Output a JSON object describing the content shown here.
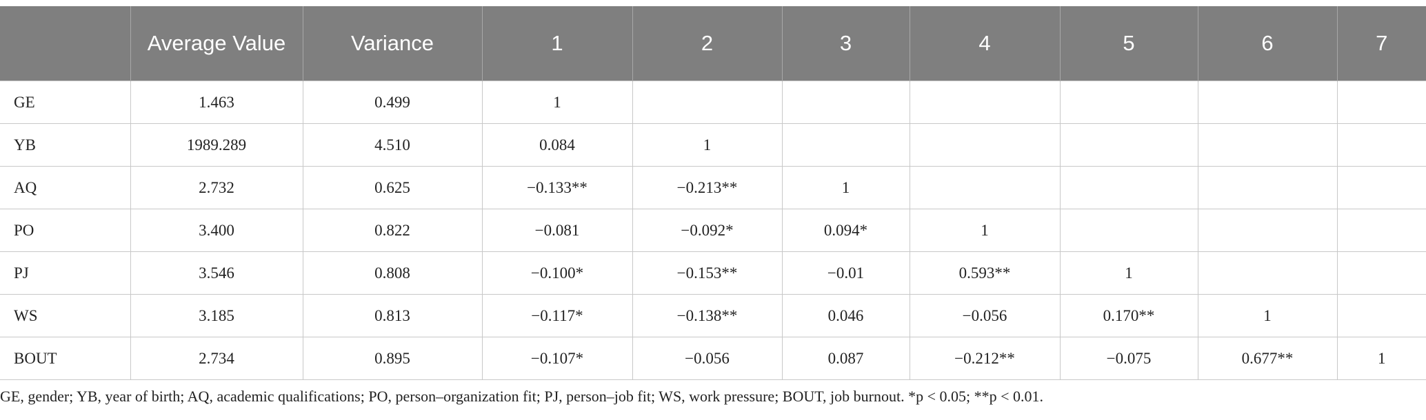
{
  "table": {
    "header": [
      "Average Value",
      "Variance",
      "1",
      "2",
      "3",
      "4",
      "5",
      "6",
      "7"
    ],
    "rows": [
      [
        "GE",
        "1.463",
        "0.499",
        "1"
      ],
      [
        "YB",
        "1989.289",
        "4.510",
        "0.084",
        "1"
      ],
      [
        "AQ",
        "2.732",
        "0.625",
        "−0.133**",
        "−0.213**",
        "1"
      ],
      [
        "PO",
        "3.400",
        "0.822",
        "−0.081",
        "−0.092*",
        "0.094*",
        "1"
      ],
      [
        "PJ",
        "3.546",
        "0.808",
        "−0.100*",
        "−0.153**",
        "−0.01",
        "0.593**",
        "1"
      ],
      [
        "WS",
        "3.185",
        "0.813",
        "−0.117*",
        "−0.138**",
        "0.046",
        "−0.056",
        "0.170**",
        "1"
      ],
      [
        "BOUT",
        "2.734",
        "0.895",
        "−0.107*",
        "−0.056",
        "0.087",
        "−0.212**",
        "−0.075",
        "0.677**",
        "1"
      ]
    ]
  },
  "footnote": "GE, gender; YB, year of birth; AQ, academic qualifications; PO, person–organization fit; PJ, person–job fit; WS, work pressure; BOUT, job burnout. *p < 0.05; **p < 0.01."
}
